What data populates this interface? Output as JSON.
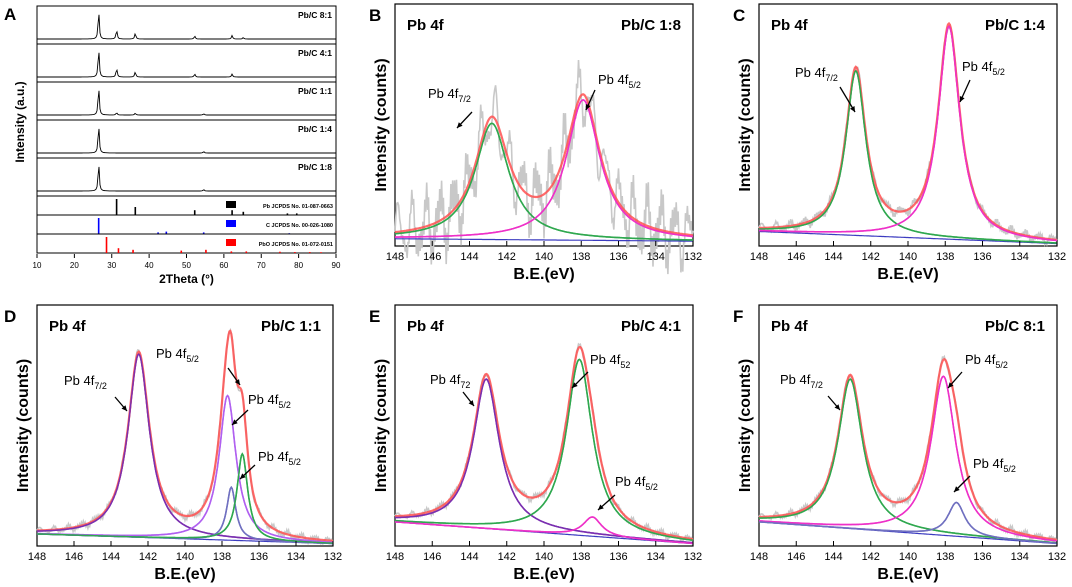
{
  "figure": {
    "description": "Six-panel figure: XRD patterns and Pb 4f XPS spectra"
  },
  "colors": {
    "axis": "#000000",
    "raw": "#c8c8c8",
    "envelope": "#ff5050",
    "fit_green": "#2fa84f",
    "fit_magenta": "#ee30c8",
    "fit_violet": "#b060f0",
    "fit_purple": "#7a2fb0",
    "fit_slate": "#7070c0",
    "background": "#3c3cc0",
    "ref_pb": "#000000",
    "ref_c": "#0000ff",
    "ref_pbo": "#ff0000"
  },
  "chart_data": [
    {
      "panel": "A",
      "type": "line",
      "xlabel": "2Theta (°)",
      "ylabel": "Intensity (a.u.)",
      "xlim": [
        10,
        90
      ],
      "xticks": [
        "10",
        "20",
        "30",
        "40",
        "50",
        "60",
        "70",
        "80",
        "90"
      ],
      "series": [
        {
          "name": "Pb/C 8:1",
          "peaks": [
            [
              26.5,
              1.0
            ],
            [
              31.3,
              0.32
            ],
            [
              36.3,
              0.2
            ],
            [
              52.2,
              0.1
            ],
            [
              62.2,
              0.12
            ],
            [
              65.2,
              0.05
            ]
          ]
        },
        {
          "name": "Pb/C 4:1",
          "peaks": [
            [
              26.5,
              1.0
            ],
            [
              31.3,
              0.3
            ],
            [
              36.3,
              0.18
            ],
            [
              52.2,
              0.1
            ],
            [
              62.2,
              0.1
            ]
          ]
        },
        {
          "name": "Pb/C 1:1",
          "peaks": [
            [
              26.5,
              1.0
            ],
            [
              31.3,
              0.08
            ],
            [
              36.3,
              0.06
            ],
            [
              54.6,
              0.04
            ]
          ]
        },
        {
          "name": "Pb/C 1:4",
          "peaks": [
            [
              26.5,
              1.0
            ],
            [
              54.6,
              0.05
            ]
          ]
        },
        {
          "name": "Pb/C 1:8",
          "peaks": [
            [
              26.5,
              1.0
            ],
            [
              54.6,
              0.05
            ]
          ]
        }
      ],
      "references": [
        {
          "name": "Pb JCPDS No. 01-087-0663",
          "color": "#000000",
          "lines": [
            [
              31.3,
              1.0
            ],
            [
              36.3,
              0.5
            ],
            [
              52.2,
              0.3
            ],
            [
              62.2,
              0.3
            ],
            [
              65.2,
              0.2
            ],
            [
              77.0,
              0.1
            ],
            [
              79.5,
              0.1
            ]
          ]
        },
        {
          "name": "C JCPDS No. 00-026-1080",
          "color": "#0000ff",
          "lines": [
            [
              26.5,
              1.0
            ],
            [
              42.4,
              0.1
            ],
            [
              44.6,
              0.15
            ],
            [
              54.6,
              0.1
            ],
            [
              77.5,
              0.05
            ]
          ]
        },
        {
          "name": "PbO JCPDS No. 01-072-0151",
          "color": "#ff0000",
          "lines": [
            [
              28.6,
              1.0
            ],
            [
              31.8,
              0.3
            ],
            [
              35.7,
              0.2
            ],
            [
              48.6,
              0.15
            ],
            [
              55.2,
              0.2
            ],
            [
              62.0,
              0.1
            ],
            [
              66.0,
              0.1
            ],
            [
              75.0,
              0.08
            ],
            [
              79.0,
              0.06
            ],
            [
              83.0,
              0.06
            ],
            [
              86.0,
              0.05
            ]
          ]
        }
      ]
    },
    {
      "panel": "B",
      "type": "line",
      "title": "Pb 4f",
      "sample": "Pb/C 1:8",
      "xlabel": "B.E.(eV)",
      "ylabel": "Intensity (counts)",
      "xlim": [
        148,
        132
      ],
      "ylim": [
        0,
        1
      ],
      "xticks": [
        "148",
        "146",
        "144",
        "142",
        "140",
        "138",
        "136",
        "134",
        "132"
      ],
      "noise": 0.2,
      "background": [
        0.03,
        0.02
      ],
      "components": [
        {
          "center": 142.8,
          "height": 0.48,
          "width": 1.1,
          "color": "#2fa84f"
        },
        {
          "center": 137.9,
          "height": 0.58,
          "width": 1.1,
          "color": "#ee30c8"
        }
      ],
      "annotations": [
        {
          "base": "Pb 4f",
          "sub": "7/2"
        },
        {
          "base": "Pb 4f",
          "sub": "5/2"
        }
      ]
    },
    {
      "panel": "C",
      "type": "line",
      "title": "Pb 4f",
      "sample": "Pb/C 1:4",
      "xlabel": "B.E.(eV)",
      "ylabel": "Intensity (counts)",
      "xlim": [
        148,
        132
      ],
      "ylim": [
        0,
        1
      ],
      "xticks": [
        "148",
        "146",
        "144",
        "142",
        "140",
        "138",
        "136",
        "134",
        "132"
      ],
      "noise": 0.03,
      "background": [
        0.06,
        0.01
      ],
      "components": [
        {
          "center": 142.8,
          "height": 0.68,
          "width": 0.65,
          "color": "#2fa84f"
        },
        {
          "center": 137.8,
          "height": 0.88,
          "width": 0.7,
          "color": "#ee30c8"
        }
      ],
      "annotations": [
        {
          "base": "Pb 4f",
          "sub": "7/2"
        },
        {
          "base": "Pb 4f",
          "sub": "5/2"
        }
      ]
    },
    {
      "panel": "D",
      "type": "line",
      "title": "Pb 4f",
      "sample": "Pb/C 1:1",
      "xlabel": "B.E.(eV)",
      "ylabel": "Intensity (counts)",
      "xlim": [
        148,
        132
      ],
      "ylim": [
        0,
        1
      ],
      "xticks": [
        "148",
        "146",
        "144",
        "142",
        "140",
        "138",
        "136",
        "134",
        "132"
      ],
      "noise": 0.02,
      "background": [
        0.05,
        0.01
      ],
      "components": [
        {
          "center": 142.5,
          "height": 0.76,
          "width": 0.7,
          "color": "#7a2fb0"
        },
        {
          "center": 137.7,
          "height": 0.6,
          "width": 0.55,
          "color": "#b060f0"
        },
        {
          "center": 137.5,
          "height": 0.22,
          "width": 0.3,
          "color": "#7070c0"
        },
        {
          "center": 136.9,
          "height": 0.36,
          "width": 0.35,
          "color": "#2fa84f"
        }
      ],
      "annotations": [
        {
          "base": "Pb 4f",
          "sub": "7/2"
        },
        {
          "base": "Pb 4f",
          "sub": "5/2"
        },
        {
          "base": "Pb 4f",
          "sub": "5/2"
        },
        {
          "base": "Pb 4f",
          "sub": "5/2"
        }
      ]
    },
    {
      "panel": "E",
      "type": "line",
      "title": "Pb 4f",
      "sample": "Pb/C 4:1",
      "xlabel": "B.E.(eV)",
      "ylabel": "Intensity (counts)",
      "xlim": [
        148,
        132
      ],
      "ylim": [
        0,
        1
      ],
      "xticks": [
        "148",
        "146",
        "144",
        "142",
        "140",
        "138",
        "136",
        "134",
        "132"
      ],
      "noise": 0.02,
      "background": [
        0.1,
        0.01
      ],
      "components": [
        {
          "center": 143.1,
          "height": 0.62,
          "width": 0.85,
          "color": "#7a2fb0"
        },
        {
          "center": 138.1,
          "height": 0.73,
          "width": 0.85,
          "color": "#2fa84f"
        },
        {
          "center": 137.4,
          "height": 0.08,
          "width": 0.6,
          "color": "#ee30c8"
        }
      ],
      "annotations": [
        {
          "base": "Pb 4f",
          "sub": "72"
        },
        {
          "base": "Pb 4f",
          "sub": "52"
        },
        {
          "base": "Pb 4f",
          "sub": "5/2"
        }
      ]
    },
    {
      "panel": "F",
      "type": "line",
      "title": "Pb 4f",
      "sample": "Pb/C 8:1",
      "xlabel": "B.E.(eV)",
      "ylabel": "Intensity (counts)",
      "xlim": [
        148,
        132
      ],
      "ylim": [
        0,
        1
      ],
      "xticks": [
        "148",
        "146",
        "144",
        "142",
        "140",
        "138",
        "136",
        "134",
        "132"
      ],
      "noise": 0.02,
      "background": [
        0.1,
        0.01
      ],
      "components": [
        {
          "center": 143.1,
          "height": 0.62,
          "width": 0.8,
          "color": "#2fa84f"
        },
        {
          "center": 138.1,
          "height": 0.66,
          "width": 0.8,
          "color": "#ee30c8"
        },
        {
          "center": 137.4,
          "height": 0.14,
          "width": 0.55,
          "color": "#7070c0"
        }
      ],
      "annotations": [
        {
          "base": "Pb 4f",
          "sub": "7/2"
        },
        {
          "base": "Pb 4f",
          "sub": "5/2"
        },
        {
          "base": "Pb 4f",
          "sub": "5/2"
        }
      ]
    }
  ]
}
